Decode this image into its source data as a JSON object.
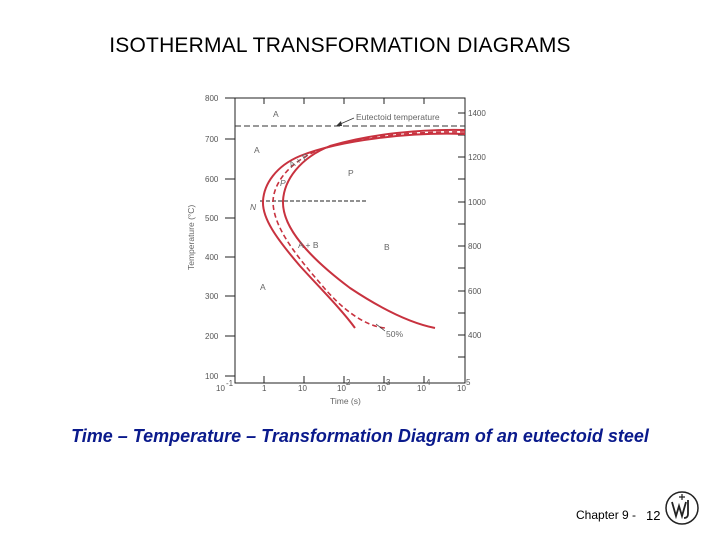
{
  "title": "ISOTHERMAL TRANSFORMATION DIAGRAMS",
  "caption": "Time – Temperature – Transformation Diagram of an eutectoid steel",
  "footer": {
    "chapter_label": "Chapter 9 -",
    "page_number": "12"
  },
  "diagram": {
    "left_ticks": [
      "800",
      "700",
      "600",
      "500",
      "400",
      "300",
      "200",
      "100"
    ],
    "right_ticks": [
      "1400",
      "1200",
      "1000",
      "800",
      "600",
      "400"
    ],
    "x_ticks": [
      "10",
      "-1",
      "1",
      "10",
      "10",
      "2",
      "10",
      "3",
      "10",
      "4",
      "10",
      "5"
    ],
    "ylabel": "Temperature (°C)",
    "xlabel": "Time (s)",
    "annotation_eutectoid": "Eutectoid temperature",
    "region_labels": {
      "austenite_top": "A",
      "austenite_left": "A",
      "austenite_low": "A",
      "pearlite": "P",
      "bainite": "B",
      "a_plus_p": "A + P",
      "a_plus_b": "A + B",
      "nose_p": "P",
      "nose_n": "N",
      "fifty_percent": "50%"
    },
    "curve_color": "#c8323f"
  }
}
